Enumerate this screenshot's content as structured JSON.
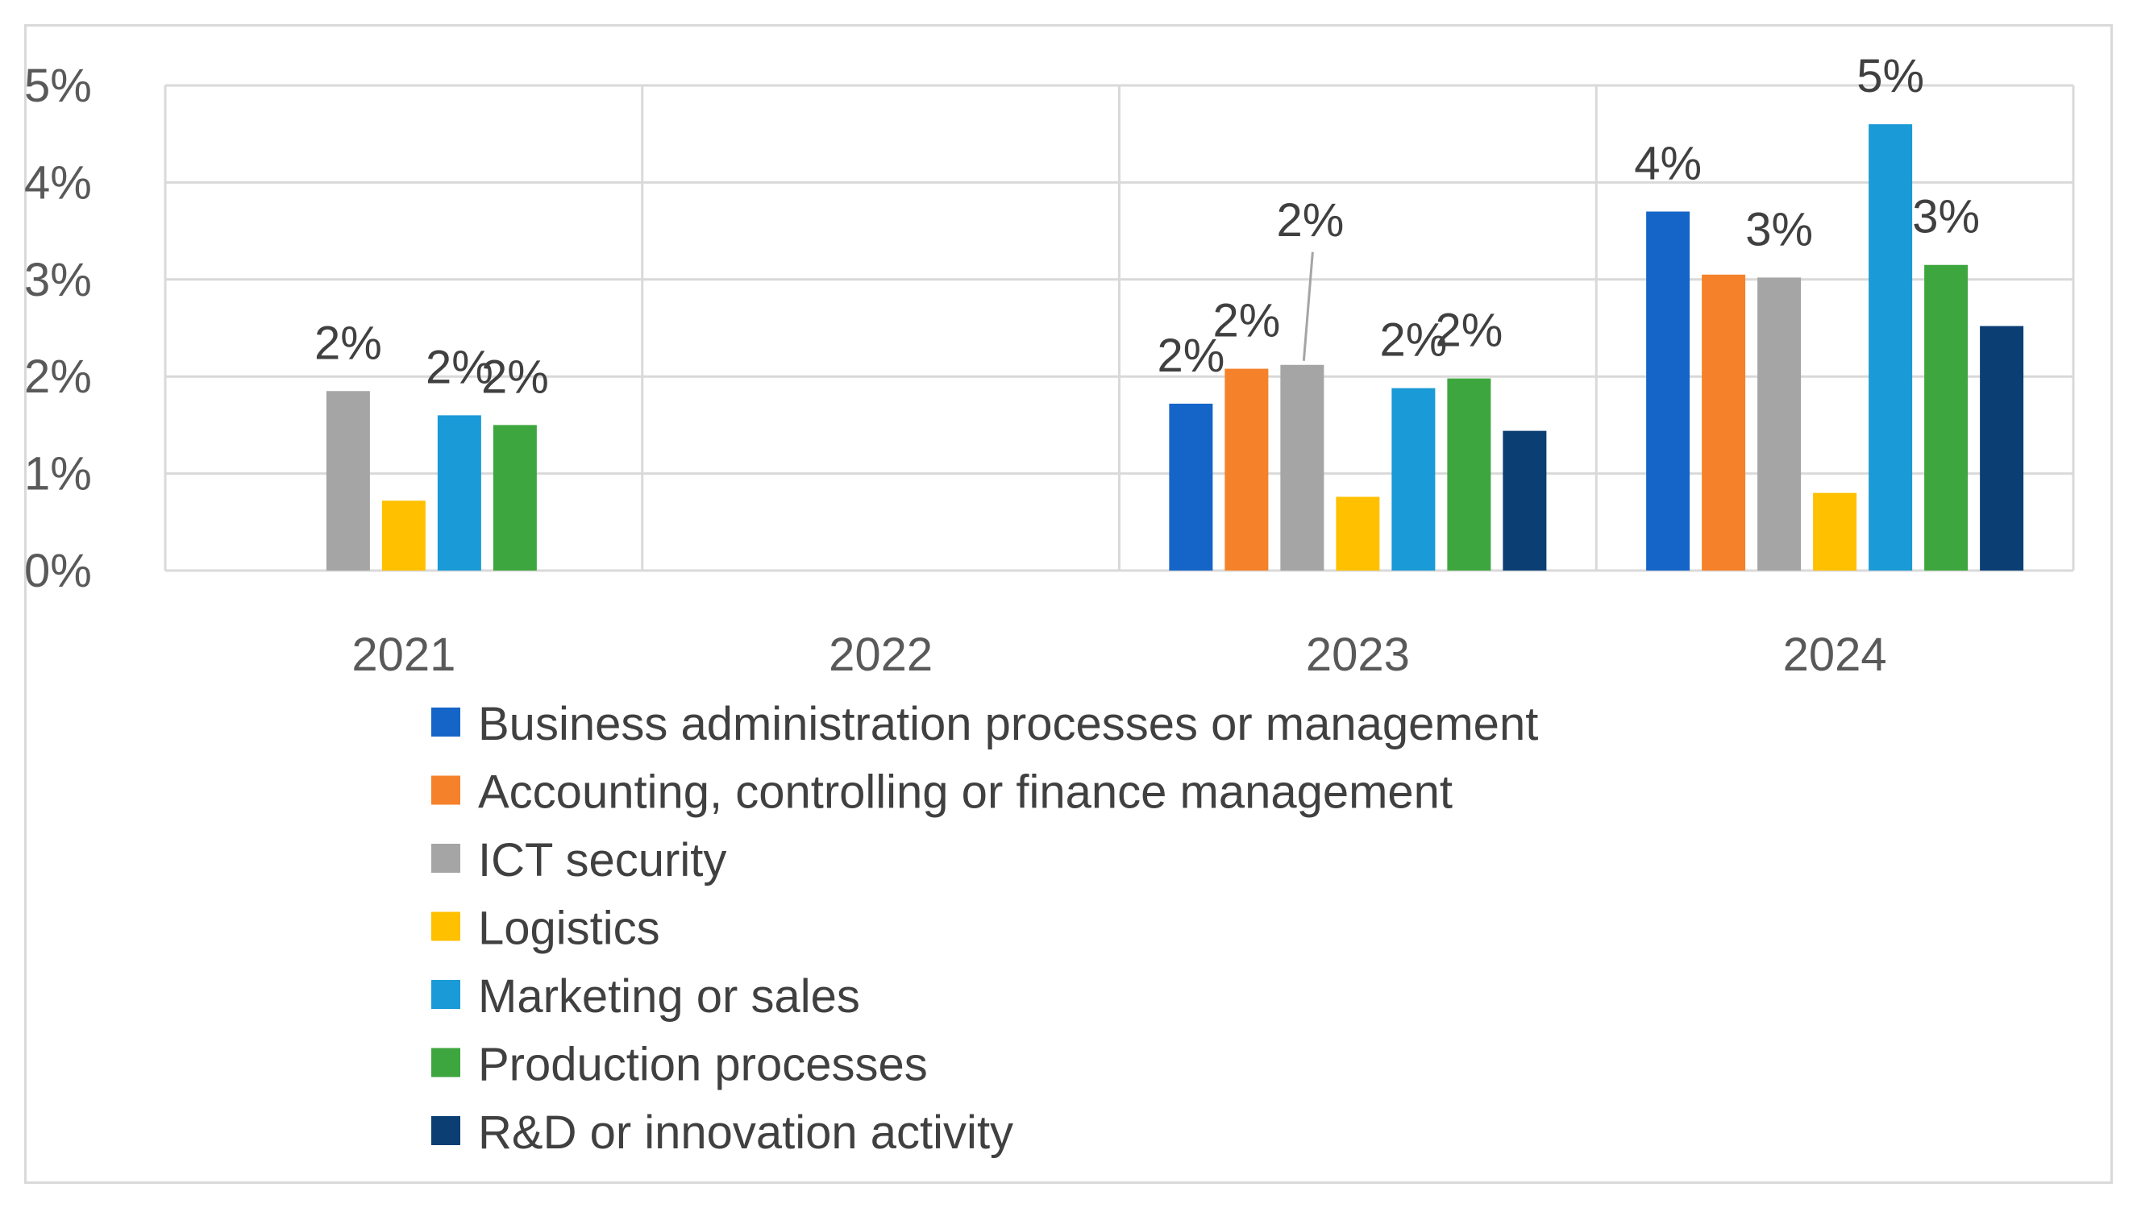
{
  "chart_data": {
    "type": "bar",
    "title": "",
    "xlabel": "",
    "ylabel": "",
    "ylim": [
      0,
      5
    ],
    "yticks": [
      "0%",
      "1%",
      "2%",
      "3%",
      "4%",
      "5%"
    ],
    "categories": [
      "2021",
      "2022",
      "2023",
      "2024"
    ],
    "legend_position": "bottom",
    "grid": true,
    "series": [
      {
        "name": "Business administration processes or management",
        "color": "#1565c8",
        "values": [
          null,
          null,
          1.72,
          3.7
        ],
        "labels": [
          "",
          "",
          "2%",
          "4%"
        ]
      },
      {
        "name": "Accounting, controlling or finance management",
        "color": "#f5822a",
        "values": [
          null,
          null,
          2.08,
          3.05
        ],
        "labels": [
          "",
          "",
          "2%",
          ""
        ]
      },
      {
        "name": "ICT security",
        "color": "#a5a5a5",
        "values": [
          1.85,
          null,
          2.12,
          3.02
        ],
        "labels": [
          "2%",
          "",
          "2%",
          "3%"
        ]
      },
      {
        "name": "Logistics",
        "color": "#ffc000",
        "values": [
          0.72,
          null,
          0.76,
          0.8
        ],
        "labels": [
          "",
          "",
          "",
          ""
        ]
      },
      {
        "name": "Marketing or sales",
        "color": "#1a9ad6",
        "values": [
          1.6,
          null,
          1.88,
          4.6
        ],
        "labels": [
          "2%",
          "",
          "2%",
          "5%"
        ]
      },
      {
        "name": "Production processes",
        "color": "#3ea63e",
        "values": [
          1.5,
          null,
          1.98,
          3.15
        ],
        "labels": [
          "2%",
          "",
          "2%",
          "3%"
        ]
      },
      {
        "name": "R&D or innovation activity",
        "color": "#0b3e73",
        "values": [
          null,
          null,
          1.44,
          2.52
        ],
        "labels": [
          "",
          "",
          "",
          ""
        ]
      }
    ]
  }
}
